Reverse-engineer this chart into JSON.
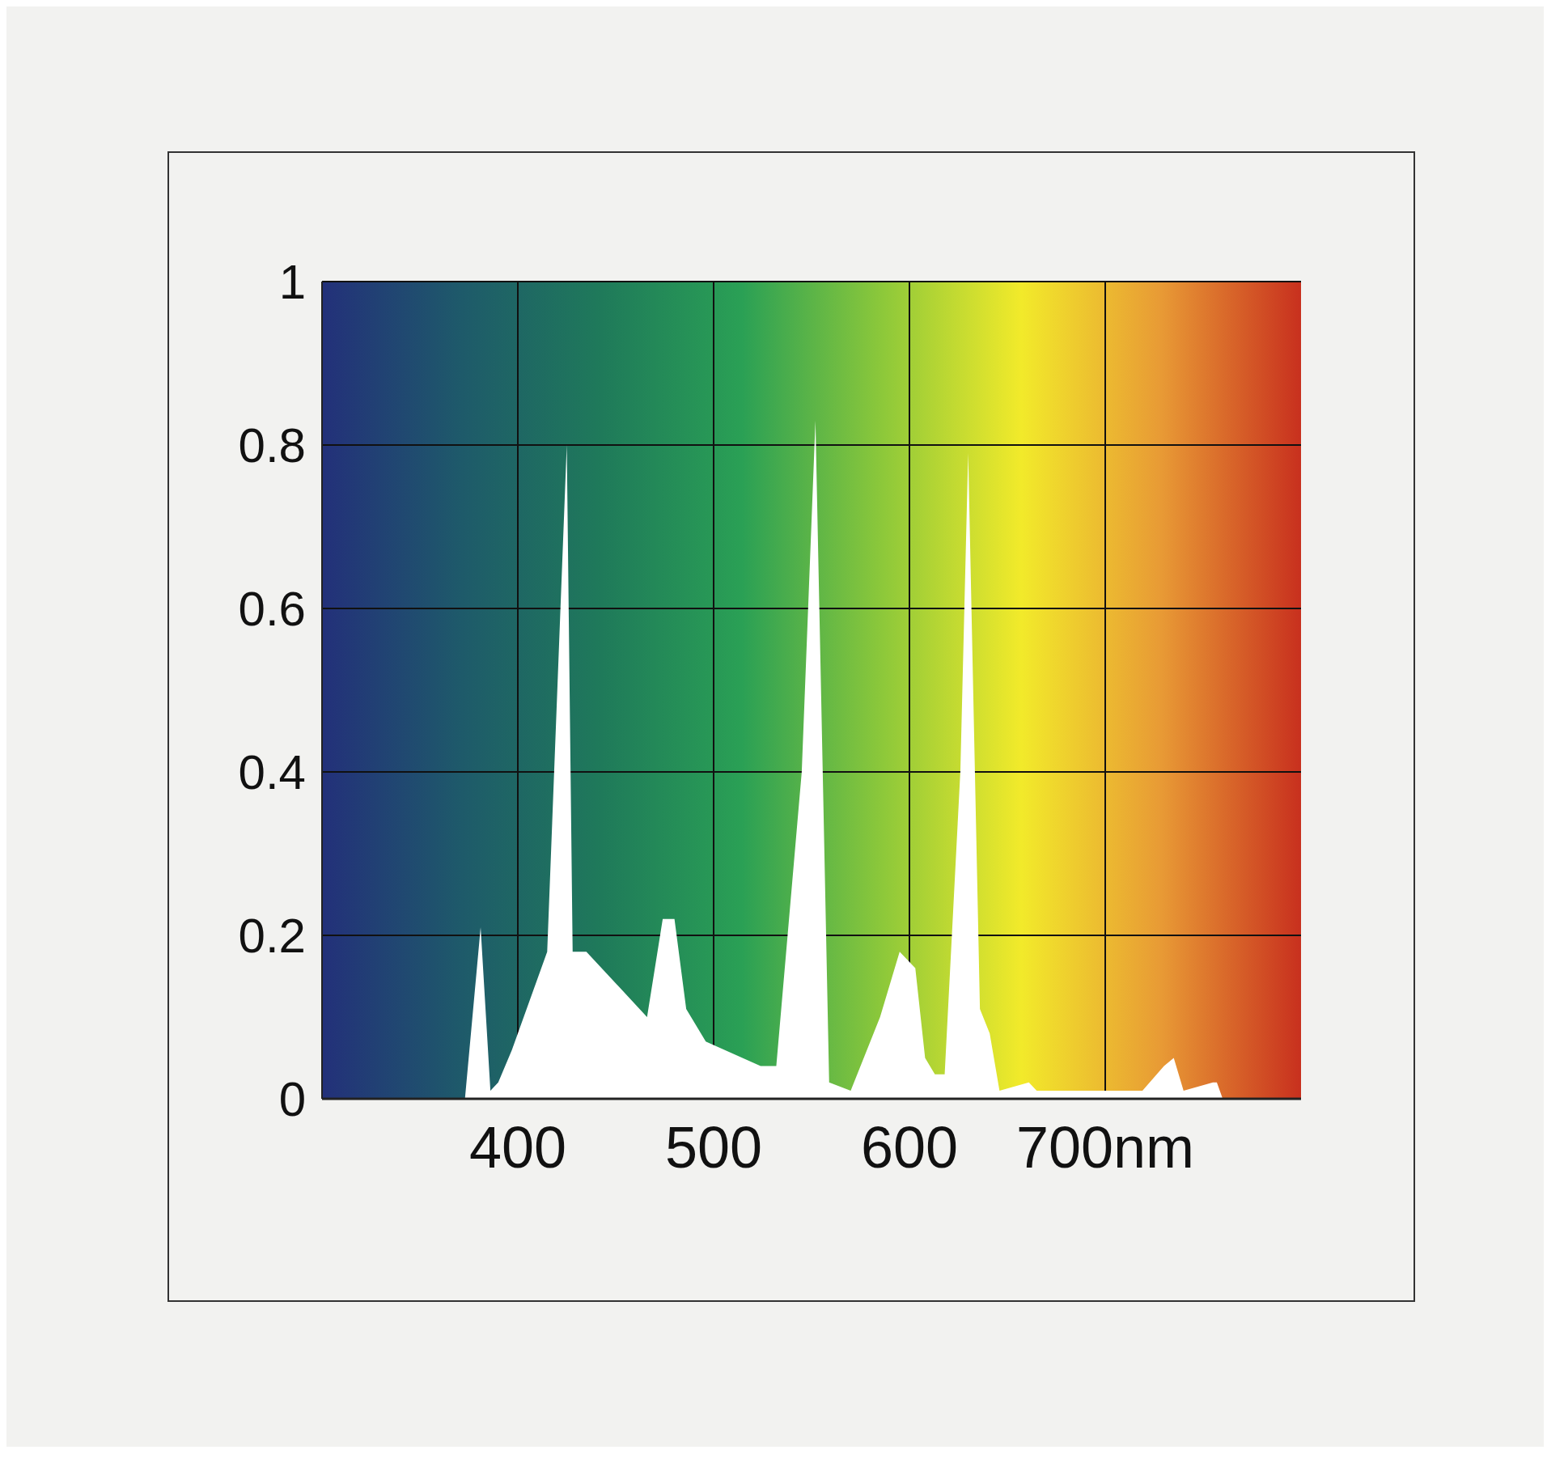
{
  "chart_data": {
    "type": "area",
    "xlim": [
      300,
      800
    ],
    "ylim": [
      0,
      1
    ],
    "xticks": [
      {
        "value": 400,
        "label": "400"
      },
      {
        "value": 500,
        "label": "500"
      },
      {
        "value": 600,
        "label": "600"
      },
      {
        "value": 700,
        "label": "700nm"
      }
    ],
    "yticks": [
      0,
      0.2,
      0.4,
      0.6,
      0.8,
      1
    ],
    "grid": true,
    "series": [
      {
        "color": "#ffffff",
        "x": [
          373,
          381,
          386,
          390,
          397,
          415,
          425,
          428,
          435,
          466,
          474,
          480,
          486,
          496,
          524,
          532,
          545,
          552,
          559,
          570,
          585,
          595,
          603,
          608,
          613,
          618,
          626,
          630,
          636,
          641,
          646,
          661,
          665,
          669,
          684,
          699,
          709,
          719,
          730,
          735,
          740,
          755,
          757,
          760,
          791
        ],
        "values": [
          0,
          0.21,
          0.01,
          0.02,
          0.06,
          0.18,
          0.8,
          0.18,
          0.18,
          0.1,
          0.22,
          0.22,
          0.11,
          0.07,
          0.04,
          0.04,
          0.4,
          0.83,
          0.02,
          0.01,
          0.1,
          0.18,
          0.16,
          0.05,
          0.03,
          0.03,
          0.4,
          0.79,
          0.11,
          0.08,
          0.01,
          0.02,
          0.01,
          0.01,
          0.01,
          0.01,
          0.01,
          0.01,
          0.04,
          0.05,
          0.01,
          0.02,
          0.02,
          0,
          0
        ]
      }
    ]
  }
}
